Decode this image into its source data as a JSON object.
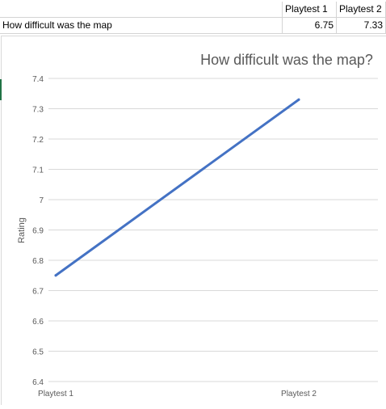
{
  "sheet": {
    "header": {
      "row_label": "",
      "col1": "Playtest 1",
      "col2": "Playtest 2"
    },
    "data_row": {
      "row_label": "How difficult was the map",
      "col1": "6.75",
      "col2": "7.33"
    }
  },
  "colors": {
    "line": "#4472c4",
    "gridline": "#d9d9d9",
    "axis_text": "#595959",
    "title_text": "#595959",
    "selection_accent": "#217346"
  },
  "chart_data": {
    "type": "line",
    "title": "How difficult was the map?",
    "xlabel": "",
    "ylabel": "Rating",
    "categories": [
      "Playtest 1",
      "Playtest 2"
    ],
    "series": [
      {
        "values": [
          6.75,
          7.33
        ]
      }
    ],
    "ylim": [
      6.4,
      7.4
    ],
    "yticks": [
      "6.4",
      "6.5",
      "6.6",
      "6.7",
      "6.8",
      "6.9",
      "7",
      "7.1",
      "7.2",
      "7.3",
      "7.4"
    ],
    "grid": true,
    "legend": "none"
  }
}
